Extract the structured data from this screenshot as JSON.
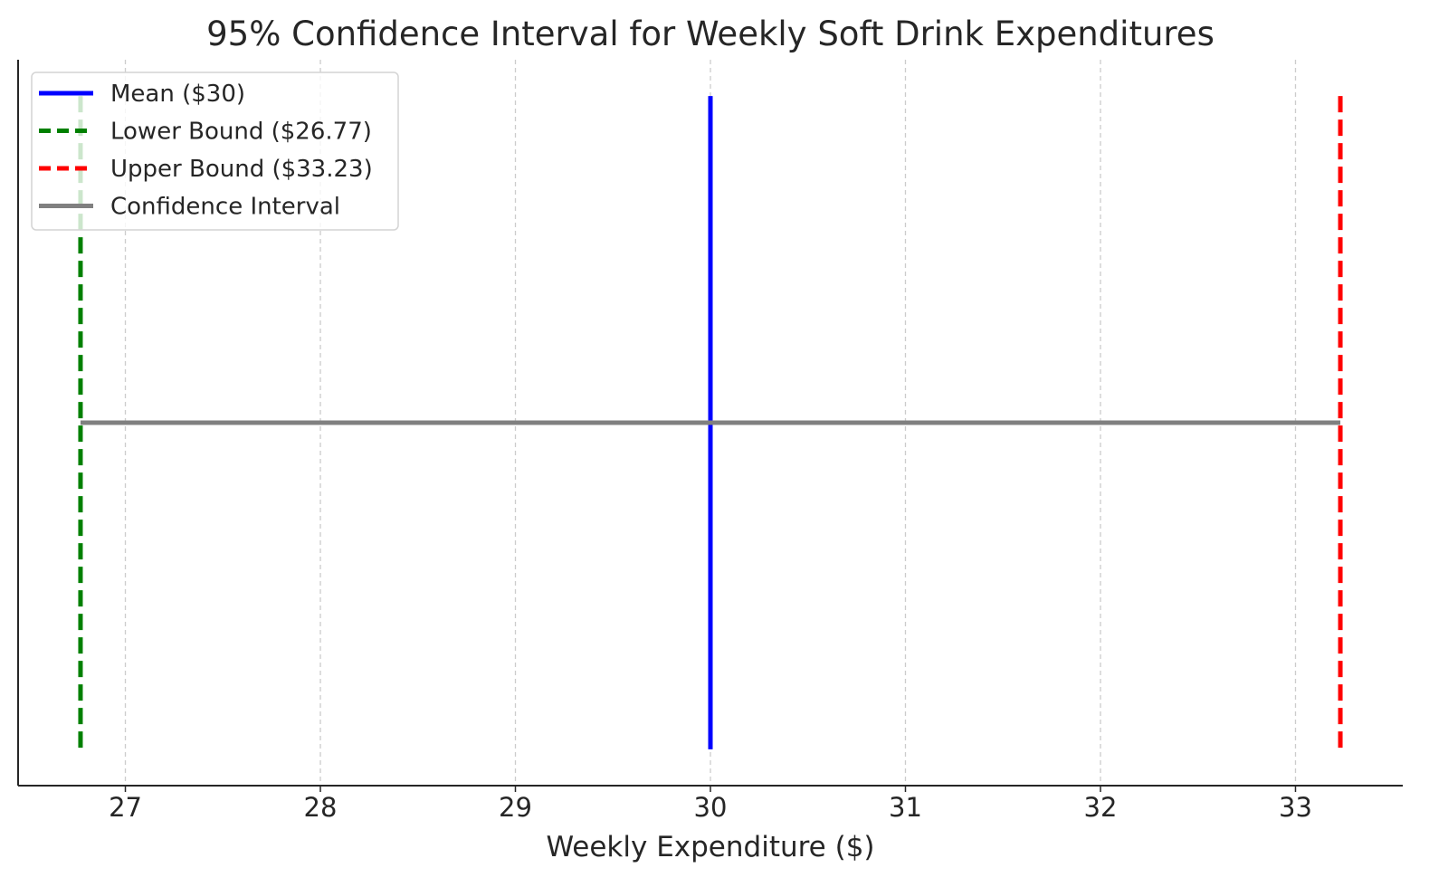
{
  "chart_data": {
    "type": "line",
    "title": "95% Confidence Interval for Weekly Soft Drink Expenditures",
    "xlabel": "Weekly Expenditure ($)",
    "ylabel": "",
    "xlim": [
      26.45,
      33.55
    ],
    "ylim": [
      0,
      1
    ],
    "x_ticks": [
      27,
      28,
      29,
      30,
      31,
      32,
      33
    ],
    "x_tick_labels": [
      "27",
      "28",
      "29",
      "30",
      "31",
      "32",
      "33"
    ],
    "y_ticks_visible": false,
    "grid": {
      "x": true,
      "y": false,
      "style": "dashed"
    },
    "legend": {
      "placement": "top-left"
    },
    "series": [
      {
        "name": "Mean ($30)",
        "kind": "vertical-line",
        "x": 30,
        "y_range": [
          0.05,
          0.95
        ],
        "color": "#0000ff",
        "style": "solid"
      },
      {
        "name": "Lower Bound ($26.77)",
        "kind": "vertical-line",
        "x": 26.77,
        "y_range": [
          0.05,
          0.95
        ],
        "color": "#008000",
        "style": "dashed"
      },
      {
        "name": "Upper Bound ($33.23)",
        "kind": "vertical-line",
        "x": 33.23,
        "y_range": [
          0.05,
          0.95
        ],
        "color": "#ff0000",
        "style": "dashed"
      },
      {
        "name": "Confidence Interval",
        "kind": "horizontal-segment",
        "x": [
          26.77,
          33.23
        ],
        "y": 0.5,
        "color": "#808080",
        "style": "solid"
      }
    ]
  }
}
